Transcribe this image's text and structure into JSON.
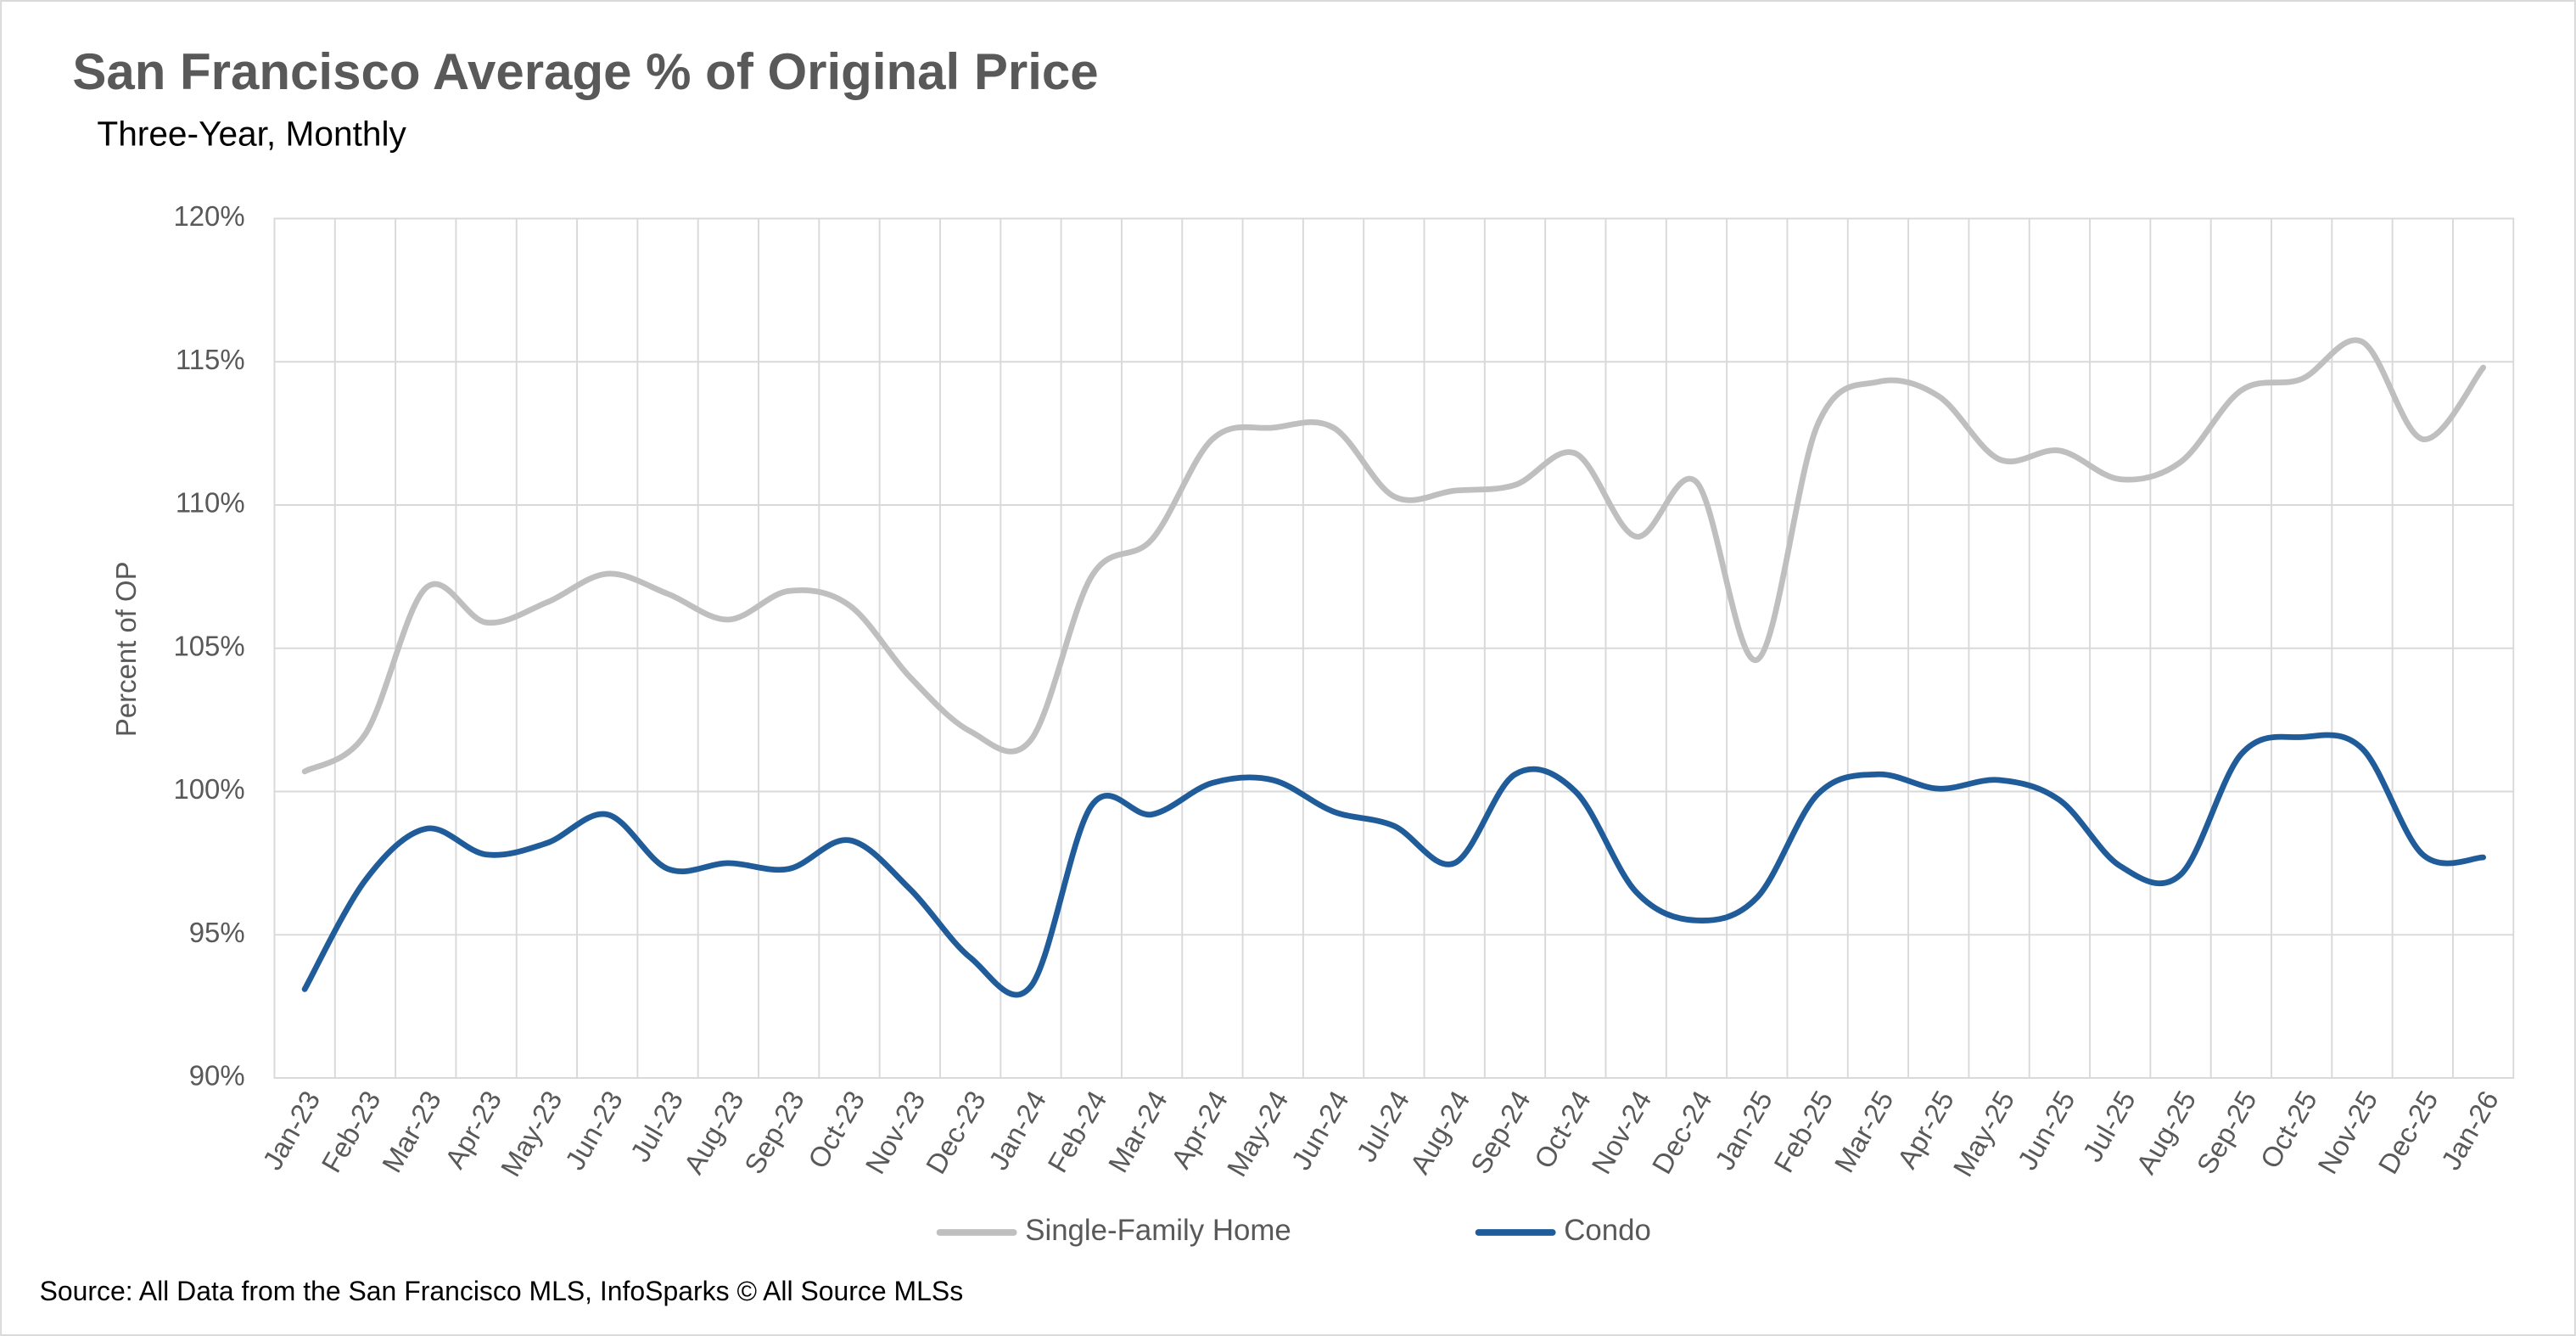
{
  "chart_data": {
    "type": "line",
    "title": "San Francisco Average % of Original Price",
    "subtitle": "Three-Year, Monthly",
    "y_label": "Percent of OP",
    "source": "Source: All Data from the San Francisco MLS, InfoSparks © All Source MLSs",
    "categories": [
      "Jan-23",
      "Feb-23",
      "Mar-23",
      "Apr-23",
      "May-23",
      "Jun-23",
      "Jul-23",
      "Aug-23",
      "Sep-23",
      "Oct-23",
      "Nov-23",
      "Dec-23",
      "Jan-24",
      "Feb-24",
      "Mar-24",
      "Apr-24",
      "May-24",
      "Jun-24",
      "Jul-24",
      "Aug-24",
      "Sep-24",
      "Oct-24",
      "Nov-24",
      "Dec-24",
      "Jan-25",
      "Feb-25",
      "Mar-25",
      "Apr-25",
      "May-25",
      "Jun-25",
      "Jul-25",
      "Aug-25",
      "Sep-25",
      "Oct-25",
      "Nov-25",
      "Dec-25",
      "Jan-26"
    ],
    "series": [
      {
        "name": "Single-Family Home",
        "color": "#bfbfbf",
        "values": [
          100.7,
          102.0,
          107.1,
          105.9,
          106.6,
          107.6,
          106.9,
          106.0,
          107.0,
          106.5,
          104.0,
          102.1,
          101.8,
          107.5,
          108.8,
          112.3,
          112.7,
          112.7,
          110.3,
          110.5,
          110.7,
          111.8,
          108.9,
          110.8,
          104.6,
          112.8,
          114.3,
          113.8,
          111.6,
          111.9,
          110.9,
          111.5,
          114.0,
          114.4,
          115.7,
          112.3,
          114.8
        ]
      },
      {
        "name": "Condo",
        "color": "#1f5c99",
        "values": [
          93.1,
          96.9,
          98.7,
          97.8,
          98.2,
          99.2,
          97.3,
          97.5,
          97.3,
          98.3,
          96.6,
          94.2,
          93.2,
          99.5,
          99.2,
          100.3,
          100.4,
          99.3,
          98.8,
          97.5,
          100.6,
          100.0,
          96.5,
          95.5,
          96.3,
          99.9,
          100.6,
          100.1,
          100.4,
          99.7,
          97.4,
          97.1,
          101.3,
          101.9,
          101.5,
          97.8,
          97.7
        ]
      }
    ],
    "ylim": [
      90,
      120
    ],
    "yticks": [
      {
        "value": 90,
        "label": "90%"
      },
      {
        "value": 95,
        "label": "95%"
      },
      {
        "value": 100,
        "label": "100%"
      },
      {
        "value": 105,
        "label": "105%"
      },
      {
        "value": 110,
        "label": "110%"
      },
      {
        "value": 115,
        "label": "115%"
      },
      {
        "value": 120,
        "label": "120%"
      }
    ],
    "grid": true,
    "smooth": true
  }
}
